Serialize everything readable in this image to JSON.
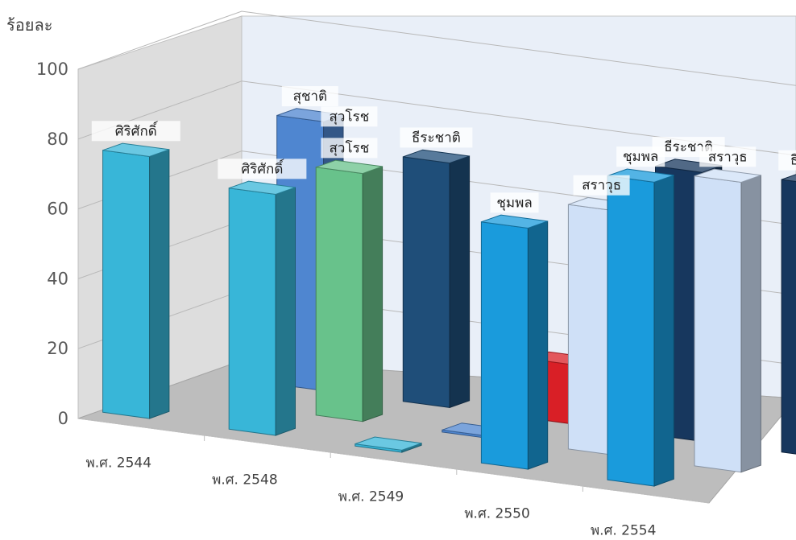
{
  "chart_data": {
    "type": "bar",
    "subtype": "3d-clustered-column",
    "ylabel": "ร้อยละ",
    "ylim": [
      0,
      100
    ],
    "yticks": [
      0,
      20,
      40,
      60,
      80,
      100
    ],
    "grid": true,
    "categories": [
      "พ.ศ. 2544",
      "พ.ศ. 2548",
      "พ.ศ. 2549",
      "พ.ศ. 2550",
      "พ.ศ. 2554"
    ],
    "series": [
      {
        "color": "#38b6d8",
        "values": [
          75,
          69,
          0,
          null,
          null
        ]
      },
      {
        "color": "#4f86d0",
        "values": [
          77,
          null,
          0,
          null,
          null
        ]
      },
      {
        "color": "#68c28b",
        "values": [
          null,
          71,
          null,
          null,
          null
        ]
      },
      {
        "color": "#1f4e79",
        "values": [
          null,
          70,
          null,
          null,
          null
        ]
      },
      {
        "color": "#d91f26",
        "values": [
          null,
          null,
          17,
          null,
          null
        ]
      },
      {
        "color": "#1a9bdc",
        "values": [
          null,
          null,
          null,
          69,
          87
        ]
      },
      {
        "color": "#cfe0f7",
        "values": [
          null,
          null,
          null,
          70,
          83
        ]
      },
      {
        "color": "#17375e",
        "values": [
          null,
          null,
          null,
          77,
          78
        ]
      }
    ],
    "bar_labels": [
      {
        "text": "ศิริศักดิ์",
        "category": "พ.ศ. 2544",
        "value": 75
      },
      {
        "text": "สุชาติ",
        "category": "พ.ศ. 2544",
        "value": 77
      },
      {
        "text": "ศิริศักดิ์",
        "category": "พ.ศ. 2548",
        "value": 69
      },
      {
        "text": "สุวโรช",
        "category": "พ.ศ. 2548",
        "value": 80
      },
      {
        "text": "สุวโรช",
        "category": "พ.ศ. 2548",
        "value": 71
      },
      {
        "text": "ธีระชาติ",
        "category": "พ.ศ. 2548",
        "value": 70
      },
      {
        "text": "ชุมพล",
        "category": "พ.ศ. 2550",
        "value": 69
      },
      {
        "text": "สราวุธ",
        "category": "พ.ศ. 2550",
        "value": 70
      },
      {
        "text": "ธีระชาติ",
        "category": "พ.ศ. 2550",
        "value": 77
      },
      {
        "text": "ชุมพล",
        "category": "พ.ศ. 2554",
        "value": 87
      },
      {
        "text": "สราวุธ",
        "category": "พ.ศ. 2554",
        "value": 83
      },
      {
        "text": "ธีระชาติ",
        "category": "พ.ศ. 2554",
        "value": 78
      }
    ]
  }
}
